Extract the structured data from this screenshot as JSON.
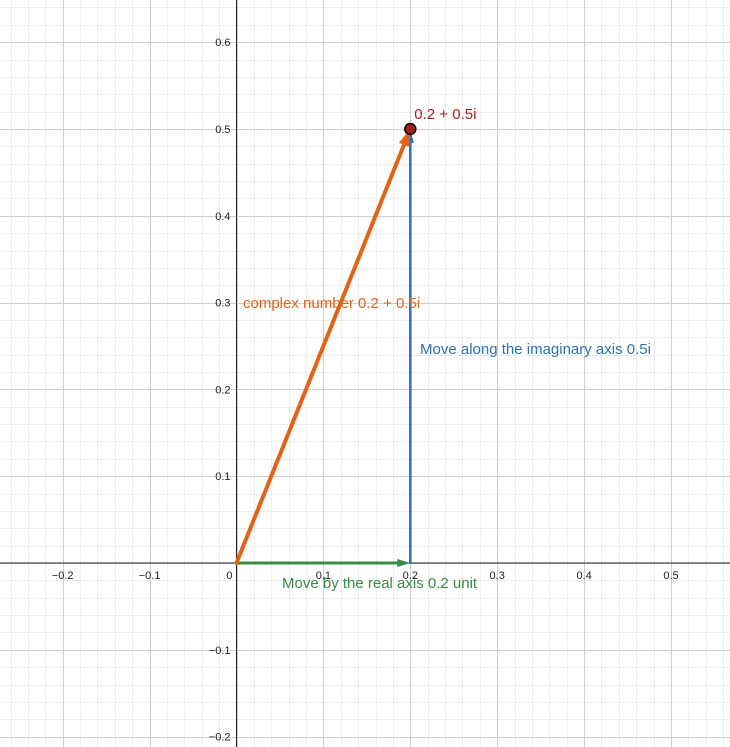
{
  "chart_data": {
    "type": "scatter",
    "title": "",
    "xlabel": "",
    "ylabel": "",
    "xlim": [
      -0.27,
      0.57
    ],
    "ylim": [
      -0.21,
      0.65
    ],
    "grid": true,
    "x_ticks": [
      -0.2,
      -0.1,
      0.1,
      0.2,
      0.3,
      0.4,
      0.5
    ],
    "x_tick_labels": [
      "−0.2",
      "−0.1",
      "0.1",
      "0.2",
      "0.3",
      "0.4",
      "0.5"
    ],
    "y_ticks": [
      0.6,
      0.5,
      0.4,
      0.3,
      0.2,
      0.1,
      -0.1,
      -0.2
    ],
    "y_tick_labels": [
      "0.6",
      "0.5",
      "0.4",
      "0.3",
      "0.2",
      "0.1",
      "−0.1",
      "−0.2"
    ],
    "origin_label": "0",
    "vectors": [
      {
        "from": [
          0,
          0
        ],
        "to": [
          0.2,
          0
        ],
        "color": "#388c46",
        "label": "Move by the real axis 0.2 unit"
      },
      {
        "from": [
          0.2,
          0
        ],
        "to": [
          0.2,
          0.5
        ],
        "color": "#2d70b3",
        "label": "Move along the imaginary axis 0.5i"
      },
      {
        "from": [
          0,
          0
        ],
        "to": [
          0.2,
          0.5
        ],
        "color": "#e2621a",
        "label": "complex number 0.2 + 0.5i"
      }
    ],
    "points": [
      {
        "x": 0.2,
        "y": 0.5,
        "color": "#a11f1f",
        "label": "0.2 + 0.5i"
      }
    ]
  }
}
